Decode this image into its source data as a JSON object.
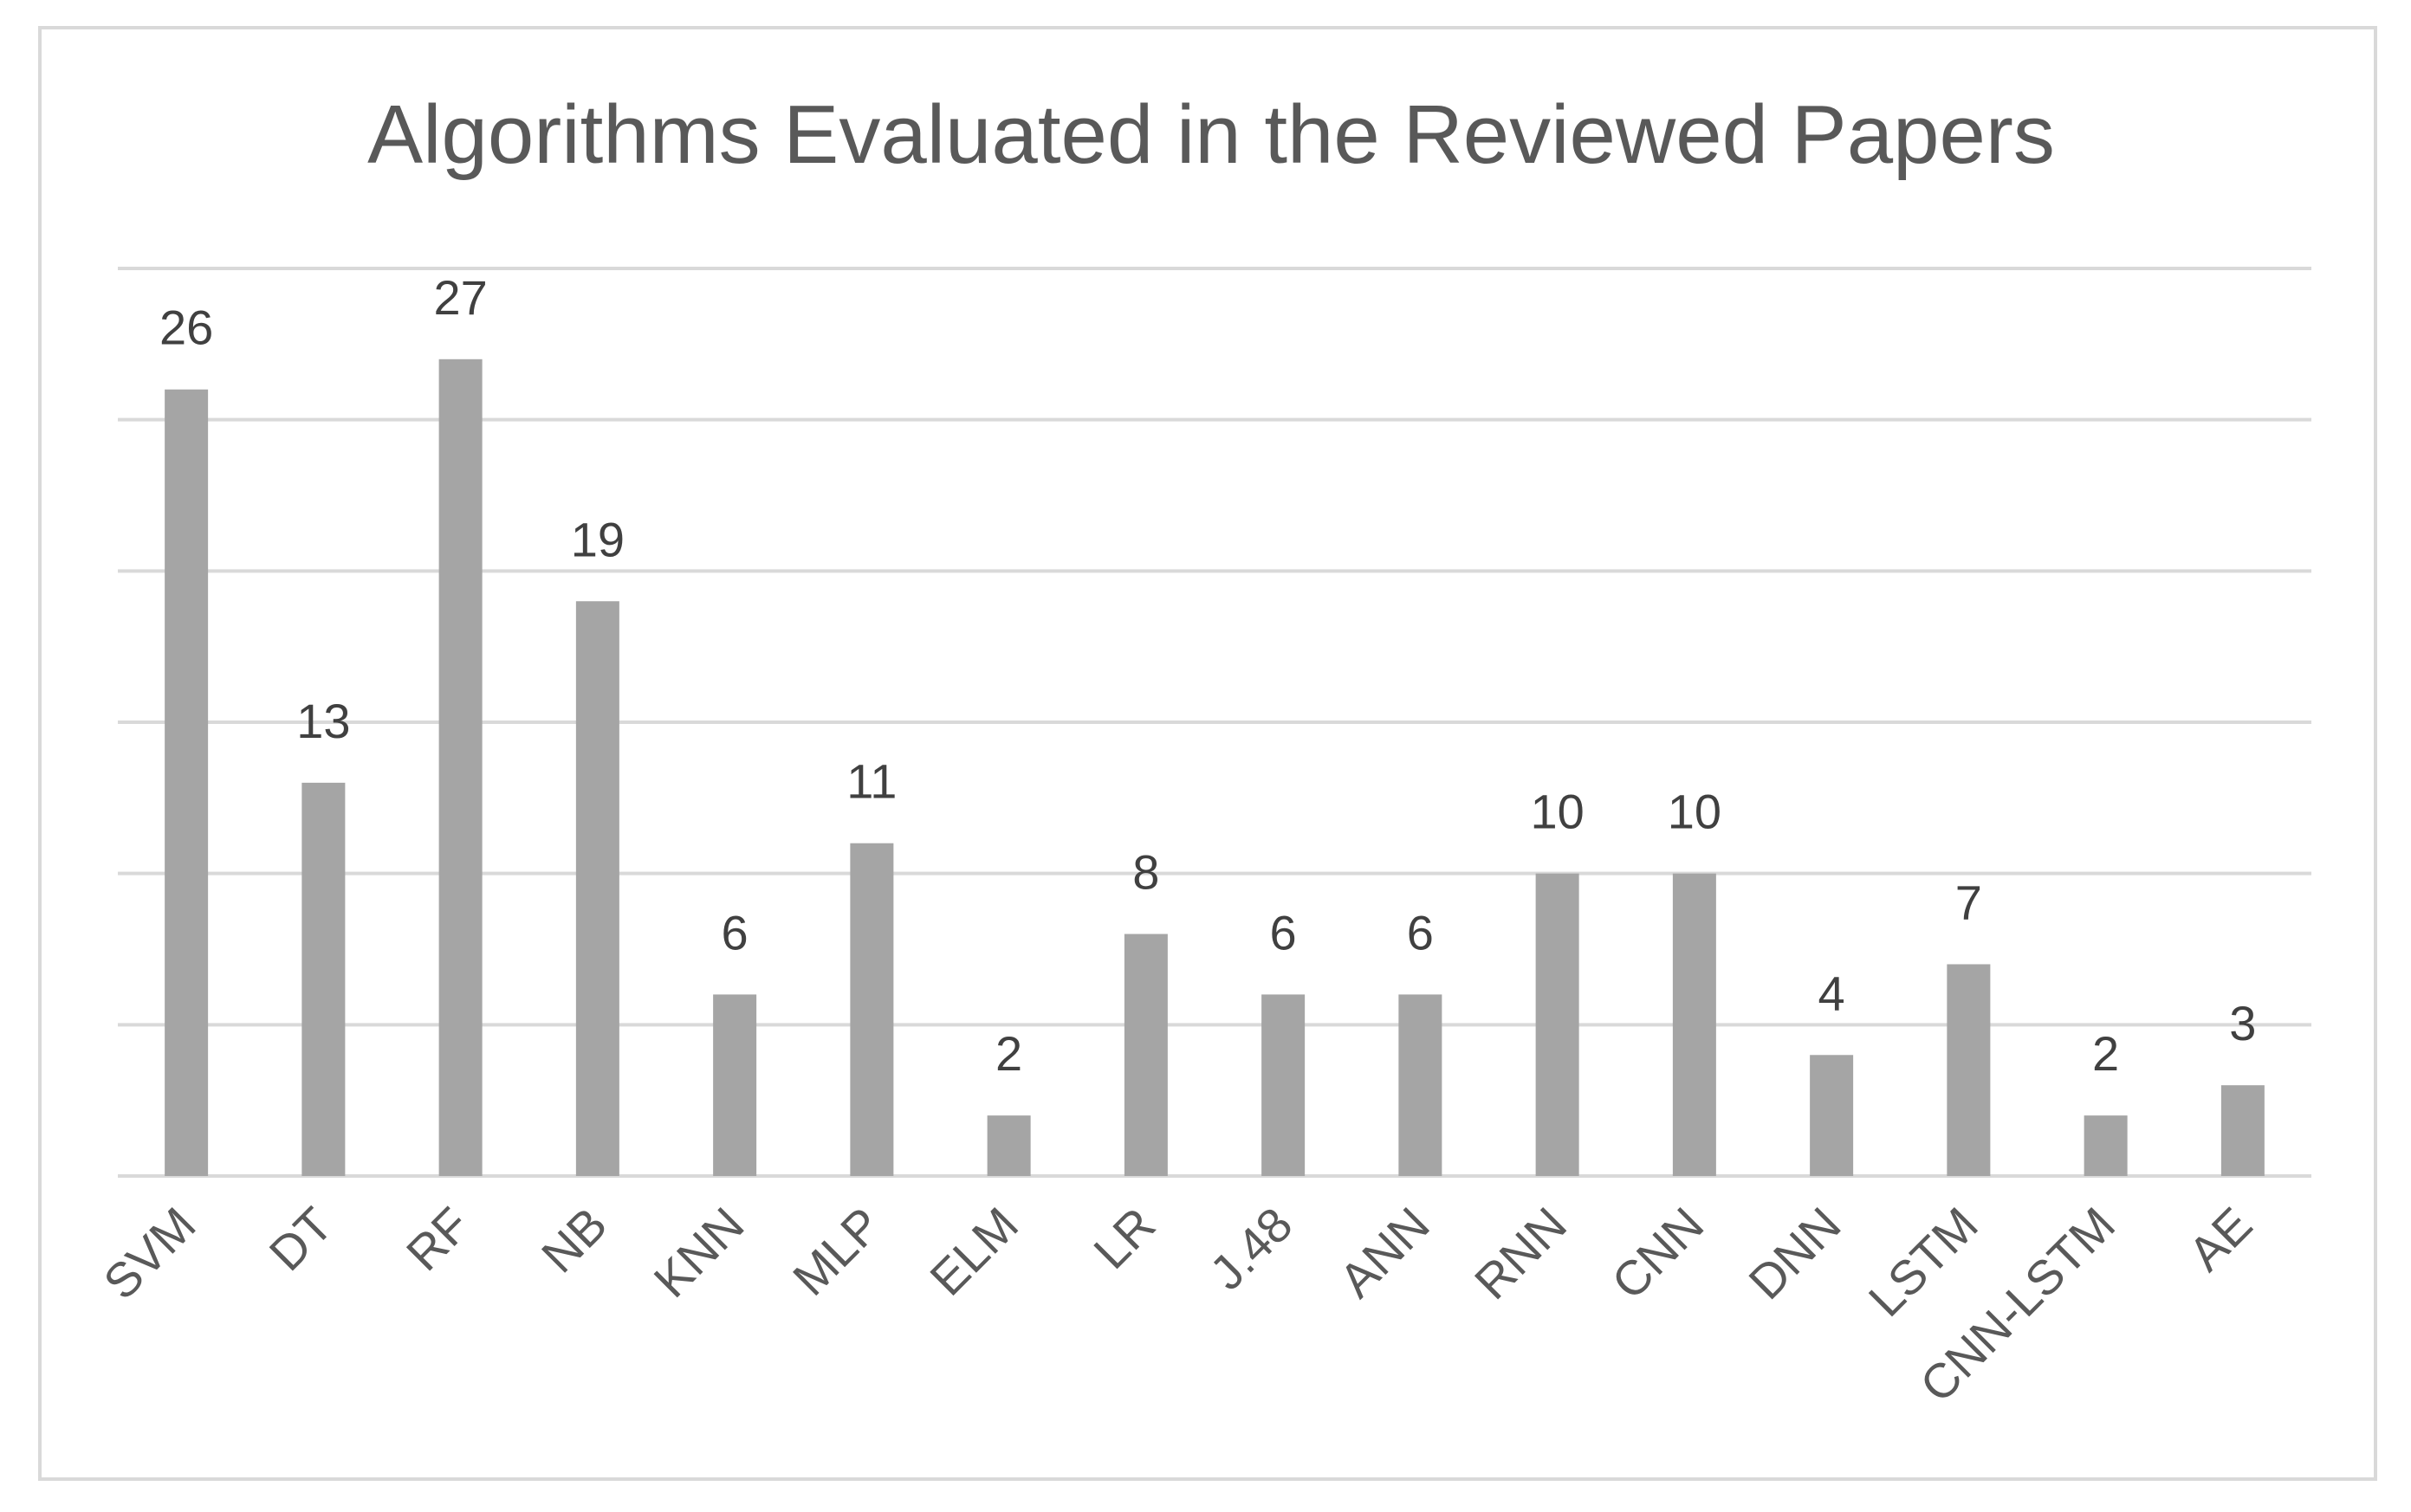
{
  "chart_data": {
    "type": "bar",
    "title": "Algorithms Evaluated in the Reviewed Papers",
    "xlabel": "",
    "ylabel": "",
    "categories": [
      "SVM",
      "DT",
      "RF",
      "NB",
      "KNN",
      "MLP",
      "ELM",
      "LR",
      "J.48",
      "ANN",
      "RNN",
      "CNN",
      "DNN",
      "LSTM",
      "CNN-LSTM",
      "AE"
    ],
    "values": [
      26,
      13,
      27,
      19,
      6,
      11,
      2,
      8,
      6,
      6,
      10,
      10,
      4,
      7,
      2,
      3
    ],
    "ylim": [
      0,
      30
    ],
    "ytick_step": 5,
    "show_y_tick_labels": false,
    "grid": true,
    "legend": "none",
    "data_labels": true,
    "colors": {
      "bar": "#a5a5a5",
      "grid": "#d9d9d9",
      "title": "#595959",
      "data_label": "#404040",
      "tick_label": "#595959"
    }
  }
}
